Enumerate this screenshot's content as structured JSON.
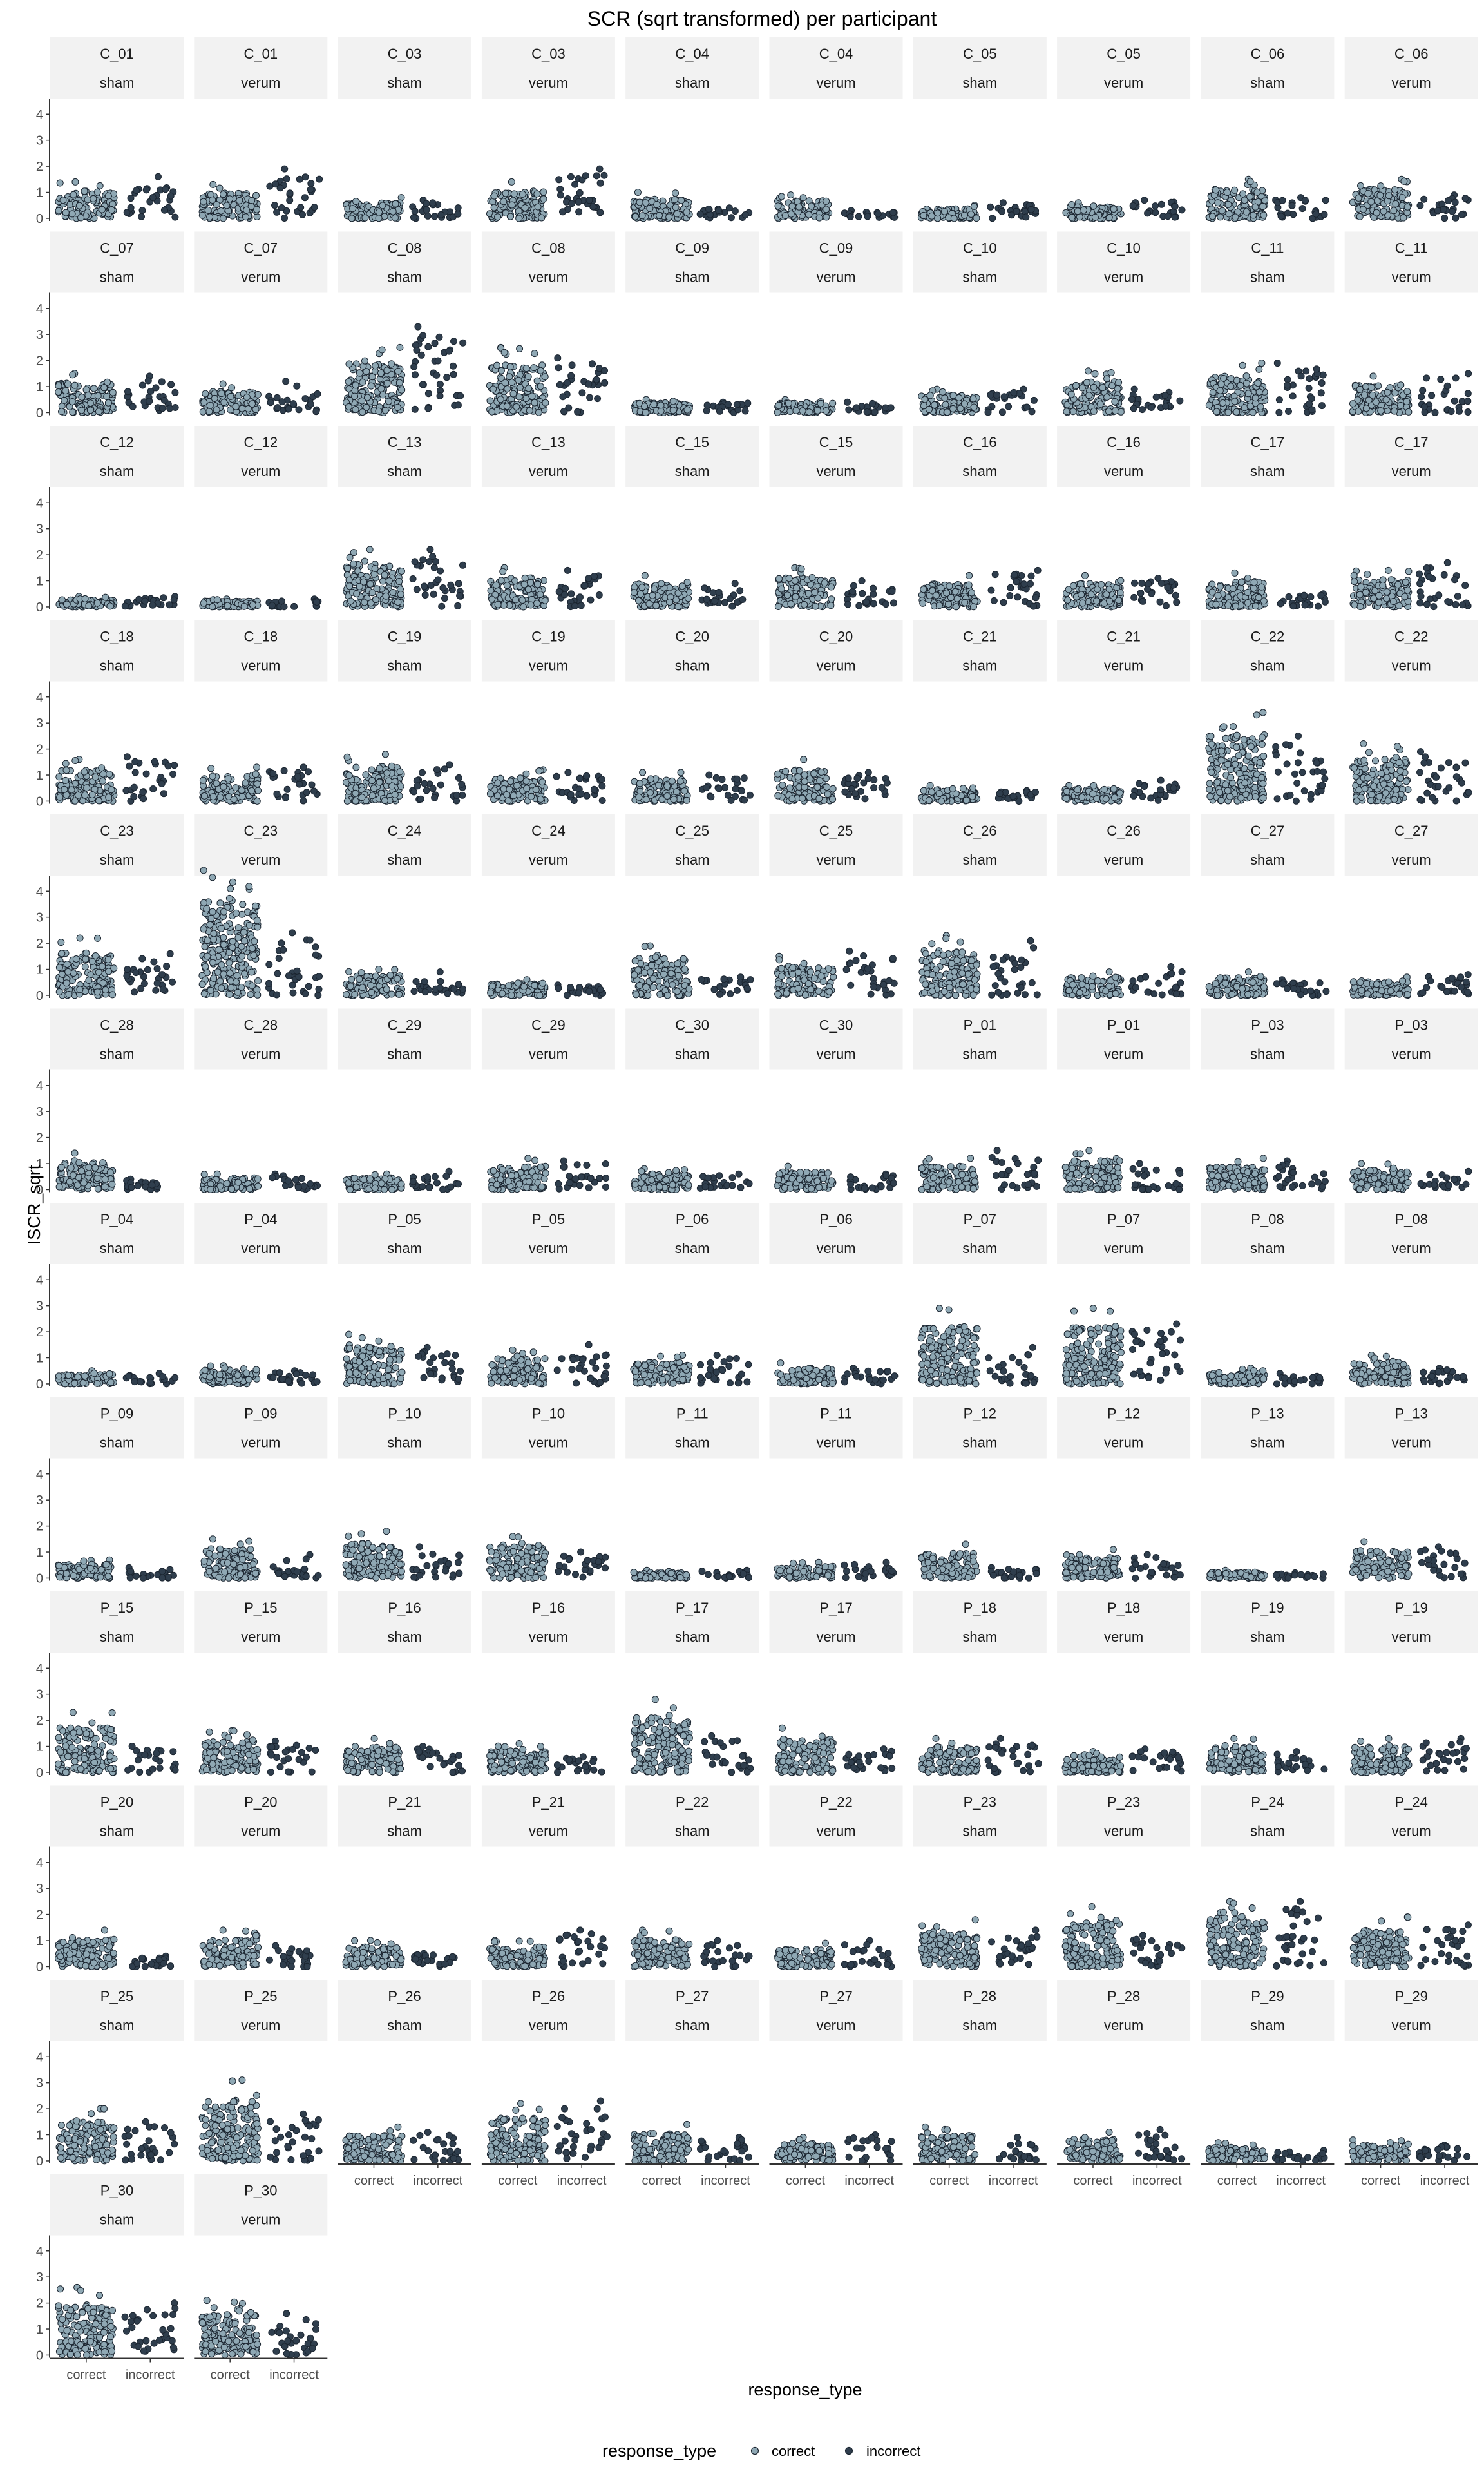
{
  "chart_data": {
    "type": "scatter",
    "title": "SCR (sqrt transformed) per participant",
    "xlabel": "response_type",
    "ylabel": "ISCR_sqrt",
    "categories": [
      "correct",
      "incorrect"
    ],
    "y_ticks": [
      0,
      1,
      2,
      3,
      4
    ],
    "ylim": [
      -0.1,
      4.6
    ],
    "grid": false,
    "legend": {
      "title": "response_type",
      "position": "bottom",
      "entries": [
        {
          "name": "correct",
          "color": "#8fa8b4"
        },
        {
          "name": "incorrect",
          "color": "#2f3e4d"
        }
      ]
    },
    "colors": {
      "correct": "#8fa8b4",
      "incorrect": "#2f3e4d",
      "stroke": "#1b2530"
    },
    "panels": [
      {
        "participant": "C_01",
        "condition": "sham",
        "correct_max": 1.4,
        "incorrect_max": 1.6
      },
      {
        "participant": "C_01",
        "condition": "verum",
        "correct_max": 1.3,
        "incorrect_max": 1.9
      },
      {
        "participant": "C_03",
        "condition": "sham",
        "correct_max": 0.8,
        "incorrect_max": 0.7
      },
      {
        "participant": "C_03",
        "condition": "verum",
        "correct_max": 1.4,
        "incorrect_max": 1.9
      },
      {
        "participant": "C_04",
        "condition": "sham",
        "correct_max": 1.0,
        "incorrect_max": 0.4
      },
      {
        "participant": "C_04",
        "condition": "verum",
        "correct_max": 0.9,
        "incorrect_max": 0.3
      },
      {
        "participant": "C_05",
        "condition": "sham",
        "correct_max": 0.5,
        "incorrect_max": 0.6
      },
      {
        "participant": "C_05",
        "condition": "verum",
        "correct_max": 0.6,
        "incorrect_max": 0.7
      },
      {
        "participant": "C_06",
        "condition": "sham",
        "correct_max": 1.5,
        "incorrect_max": 0.8
      },
      {
        "participant": "C_06",
        "condition": "verum",
        "correct_max": 1.5,
        "incorrect_max": 0.9
      },
      {
        "participant": "C_07",
        "condition": "sham",
        "correct_max": 1.5,
        "incorrect_max": 1.4
      },
      {
        "participant": "C_07",
        "condition": "verum",
        "correct_max": 1.1,
        "incorrect_max": 1.2
      },
      {
        "participant": "C_08",
        "condition": "sham",
        "correct_max": 2.5,
        "incorrect_max": 3.3
      },
      {
        "participant": "C_08",
        "condition": "verum",
        "correct_max": 2.5,
        "incorrect_max": 2.1
      },
      {
        "participant": "C_09",
        "condition": "sham",
        "correct_max": 0.5,
        "incorrect_max": 0.4
      },
      {
        "participant": "C_09",
        "condition": "verum",
        "correct_max": 0.5,
        "incorrect_max": 0.4
      },
      {
        "participant": "C_10",
        "condition": "sham",
        "correct_max": 0.9,
        "incorrect_max": 0.9
      },
      {
        "participant": "C_10",
        "condition": "verum",
        "correct_max": 1.6,
        "incorrect_max": 0.9
      },
      {
        "participant": "C_11",
        "condition": "sham",
        "correct_max": 1.9,
        "incorrect_max": 1.9
      },
      {
        "participant": "C_11",
        "condition": "verum",
        "correct_max": 1.4,
        "incorrect_max": 1.5
      },
      {
        "participant": "C_12",
        "condition": "sham",
        "correct_max": 0.4,
        "incorrect_max": 0.4
      },
      {
        "participant": "C_12",
        "condition": "verum",
        "correct_max": 0.3,
        "incorrect_max": 0.3
      },
      {
        "participant": "C_13",
        "condition": "sham",
        "correct_max": 2.2,
        "incorrect_max": 2.2
      },
      {
        "participant": "C_13",
        "condition": "verum",
        "correct_max": 1.5,
        "incorrect_max": 1.4
      },
      {
        "participant": "C_15",
        "condition": "sham",
        "correct_max": 1.2,
        "incorrect_max": 0.9
      },
      {
        "participant": "C_15",
        "condition": "verum",
        "correct_max": 1.5,
        "incorrect_max": 1.0
      },
      {
        "participant": "C_16",
        "condition": "sham",
        "correct_max": 1.2,
        "incorrect_max": 1.4
      },
      {
        "participant": "C_16",
        "condition": "verum",
        "correct_max": 1.2,
        "incorrect_max": 1.1
      },
      {
        "participant": "C_17",
        "condition": "sham",
        "correct_max": 1.3,
        "incorrect_max": 0.5
      },
      {
        "participant": "C_17",
        "condition": "verum",
        "correct_max": 1.4,
        "incorrect_max": 1.7
      },
      {
        "participant": "C_18",
        "condition": "sham",
        "correct_max": 1.6,
        "incorrect_max": 1.7
      },
      {
        "participant": "C_18",
        "condition": "verum",
        "correct_max": 1.3,
        "incorrect_max": 1.3
      },
      {
        "participant": "C_19",
        "condition": "sham",
        "correct_max": 1.8,
        "incorrect_max": 1.4
      },
      {
        "participant": "C_19",
        "condition": "verum",
        "correct_max": 1.2,
        "incorrect_max": 1.1
      },
      {
        "participant": "C_20",
        "condition": "sham",
        "correct_max": 1.1,
        "incorrect_max": 1.0
      },
      {
        "participant": "C_20",
        "condition": "verum",
        "correct_max": 1.6,
        "incorrect_max": 1.1
      },
      {
        "participant": "C_21",
        "condition": "sham",
        "correct_max": 0.6,
        "incorrect_max": 0.4
      },
      {
        "participant": "C_21",
        "condition": "verum",
        "correct_max": 0.6,
        "incorrect_max": 0.8
      },
      {
        "participant": "C_22",
        "condition": "sham",
        "correct_max": 3.4,
        "incorrect_max": 2.5
      },
      {
        "participant": "C_22",
        "condition": "verum",
        "correct_max": 2.2,
        "incorrect_max": 1.9
      },
      {
        "participant": "C_23",
        "condition": "sham",
        "correct_max": 2.2,
        "incorrect_max": 1.6
      },
      {
        "participant": "C_23",
        "condition": "verum",
        "correct_max": 4.8,
        "incorrect_max": 2.4
      },
      {
        "participant": "C_24",
        "condition": "sham",
        "correct_max": 1.0,
        "incorrect_max": 0.9
      },
      {
        "participant": "C_24",
        "condition": "verum",
        "correct_max": 0.6,
        "incorrect_max": 0.4
      },
      {
        "participant": "C_25",
        "condition": "sham",
        "correct_max": 1.9,
        "incorrect_max": 0.7
      },
      {
        "participant": "C_25",
        "condition": "verum",
        "correct_max": 1.5,
        "incorrect_max": 1.7
      },
      {
        "participant": "C_26",
        "condition": "sham",
        "correct_max": 2.3,
        "incorrect_max": 2.1
      },
      {
        "participant": "C_26",
        "condition": "verum",
        "correct_max": 0.9,
        "incorrect_max": 1.1
      },
      {
        "participant": "C_27",
        "condition": "sham",
        "correct_max": 0.9,
        "incorrect_max": 0.6
      },
      {
        "participant": "C_27",
        "condition": "verum",
        "correct_max": 0.7,
        "incorrect_max": 0.8
      },
      {
        "participant": "C_28",
        "condition": "sham",
        "correct_max": 1.4,
        "incorrect_max": 0.4
      },
      {
        "participant": "C_28",
        "condition": "verum",
        "correct_max": 0.6,
        "incorrect_max": 0.6
      },
      {
        "participant": "C_29",
        "condition": "sham",
        "correct_max": 0.6,
        "incorrect_max": 0.7
      },
      {
        "participant": "C_29",
        "condition": "verum",
        "correct_max": 1.2,
        "incorrect_max": 1.1
      },
      {
        "participant": "C_30",
        "condition": "sham",
        "correct_max": 0.8,
        "incorrect_max": 0.6
      },
      {
        "participant": "C_30",
        "condition": "verum",
        "correct_max": 0.9,
        "incorrect_max": 0.6
      },
      {
        "participant": "P_01",
        "condition": "sham",
        "correct_max": 1.2,
        "incorrect_max": 1.5
      },
      {
        "participant": "P_01",
        "condition": "verum",
        "correct_max": 1.5,
        "incorrect_max": 1.0
      },
      {
        "participant": "P_03",
        "condition": "sham",
        "correct_max": 1.2,
        "incorrect_max": 1.1
      },
      {
        "participant": "P_03",
        "condition": "verum",
        "correct_max": 1.0,
        "incorrect_max": 0.7
      },
      {
        "participant": "P_04",
        "condition": "sham",
        "correct_max": 0.5,
        "incorrect_max": 0.4
      },
      {
        "participant": "P_04",
        "condition": "verum",
        "correct_max": 0.7,
        "incorrect_max": 0.5
      },
      {
        "participant": "P_05",
        "condition": "sham",
        "correct_max": 1.9,
        "incorrect_max": 1.4
      },
      {
        "participant": "P_05",
        "condition": "verum",
        "correct_max": 1.3,
        "incorrect_max": 1.5
      },
      {
        "participant": "P_06",
        "condition": "sham",
        "correct_max": 1.1,
        "incorrect_max": 1.1
      },
      {
        "participant": "P_06",
        "condition": "verum",
        "correct_max": 0.8,
        "incorrect_max": 0.6
      },
      {
        "participant": "P_07",
        "condition": "sham",
        "correct_max": 2.9,
        "incorrect_max": 1.4
      },
      {
        "participant": "P_07",
        "condition": "verum",
        "correct_max": 2.9,
        "incorrect_max": 2.3
      },
      {
        "participant": "P_08",
        "condition": "sham",
        "correct_max": 0.6,
        "incorrect_max": 0.4
      },
      {
        "participant": "P_08",
        "condition": "verum",
        "correct_max": 1.1,
        "incorrect_max": 0.6
      },
      {
        "participant": "P_09",
        "condition": "sham",
        "correct_max": 0.7,
        "incorrect_max": 0.4
      },
      {
        "participant": "P_09",
        "condition": "verum",
        "correct_max": 1.5,
        "incorrect_max": 0.9
      },
      {
        "participant": "P_10",
        "condition": "sham",
        "correct_max": 1.8,
        "incorrect_max": 1.2
      },
      {
        "participant": "P_10",
        "condition": "verum",
        "correct_max": 1.6,
        "incorrect_max": 1.0
      },
      {
        "participant": "P_11",
        "condition": "sham",
        "correct_max": 0.3,
        "incorrect_max": 0.3
      },
      {
        "participant": "P_11",
        "condition": "verum",
        "correct_max": 0.6,
        "incorrect_max": 0.6
      },
      {
        "participant": "P_12",
        "condition": "sham",
        "correct_max": 1.3,
        "incorrect_max": 0.4
      },
      {
        "participant": "P_12",
        "condition": "verum",
        "correct_max": 1.1,
        "incorrect_max": 0.9
      },
      {
        "participant": "P_13",
        "condition": "sham",
        "correct_max": 0.3,
        "incorrect_max": 0.2
      },
      {
        "participant": "P_13",
        "condition": "verum",
        "correct_max": 1.4,
        "incorrect_max": 1.2
      },
      {
        "participant": "P_15",
        "condition": "sham",
        "correct_max": 2.3,
        "incorrect_max": 1.0
      },
      {
        "participant": "P_15",
        "condition": "verum",
        "correct_max": 1.6,
        "incorrect_max": 1.2
      },
      {
        "participant": "P_16",
        "condition": "sham",
        "correct_max": 1.3,
        "incorrect_max": 1.0
      },
      {
        "participant": "P_16",
        "condition": "verum",
        "correct_max": 1.1,
        "incorrect_max": 0.6
      },
      {
        "participant": "P_17",
        "condition": "sham",
        "correct_max": 2.8,
        "incorrect_max": 1.4
      },
      {
        "participant": "P_17",
        "condition": "verum",
        "correct_max": 1.7,
        "incorrect_max": 0.9
      },
      {
        "participant": "P_18",
        "condition": "sham",
        "correct_max": 1.3,
        "incorrect_max": 1.3
      },
      {
        "participant": "P_18",
        "condition": "verum",
        "correct_max": 0.8,
        "incorrect_max": 0.9
      },
      {
        "participant": "P_19",
        "condition": "sham",
        "correct_max": 1.3,
        "incorrect_max": 0.8
      },
      {
        "participant": "P_19",
        "condition": "verum",
        "correct_max": 1.3,
        "incorrect_max": 1.3
      },
      {
        "participant": "P_20",
        "condition": "sham",
        "correct_max": 1.4,
        "incorrect_max": 0.4
      },
      {
        "participant": "P_20",
        "condition": "verum",
        "correct_max": 1.4,
        "incorrect_max": 0.8
      },
      {
        "participant": "P_21",
        "condition": "sham",
        "correct_max": 1.0,
        "incorrect_max": 0.5
      },
      {
        "participant": "P_21",
        "condition": "verum",
        "correct_max": 1.0,
        "incorrect_max": 1.4
      },
      {
        "participant": "P_22",
        "condition": "sham",
        "correct_max": 1.4,
        "incorrect_max": 1.0
      },
      {
        "participant": "P_22",
        "condition": "verum",
        "correct_max": 0.9,
        "incorrect_max": 1.0
      },
      {
        "participant": "P_23",
        "condition": "sham",
        "correct_max": 1.8,
        "incorrect_max": 1.4
      },
      {
        "participant": "P_23",
        "condition": "verum",
        "correct_max": 2.3,
        "incorrect_max": 1.2
      },
      {
        "participant": "P_24",
        "condition": "sham",
        "correct_max": 2.5,
        "incorrect_max": 2.5
      },
      {
        "participant": "P_24",
        "condition": "verum",
        "correct_max": 1.9,
        "incorrect_max": 1.6
      },
      {
        "participant": "P_25",
        "condition": "sham",
        "correct_max": 2.0,
        "incorrect_max": 1.5
      },
      {
        "participant": "P_25",
        "condition": "verum",
        "correct_max": 3.1,
        "incorrect_max": 1.8
      },
      {
        "participant": "P_26",
        "condition": "sham",
        "correct_max": 1.3,
        "incorrect_max": 1.1
      },
      {
        "participant": "P_26",
        "condition": "verum",
        "correct_max": 2.2,
        "incorrect_max": 2.3
      },
      {
        "participant": "P_27",
        "condition": "sham",
        "correct_max": 1.4,
        "incorrect_max": 0.9
      },
      {
        "participant": "P_27",
        "condition": "verum",
        "correct_max": 0.9,
        "incorrect_max": 1.0
      },
      {
        "participant": "P_28",
        "condition": "sham",
        "correct_max": 1.3,
        "incorrect_max": 0.9
      },
      {
        "participant": "P_28",
        "condition": "verum",
        "correct_max": 1.1,
        "incorrect_max": 1.2
      },
      {
        "participant": "P_29",
        "condition": "sham",
        "correct_max": 0.7,
        "incorrect_max": 0.4
      },
      {
        "participant": "P_29",
        "condition": "verum",
        "correct_max": 0.8,
        "incorrect_max": 0.6
      },
      {
        "participant": "P_30",
        "condition": "sham",
        "correct_max": 2.6,
        "incorrect_max": 2.0
      },
      {
        "participant": "P_30",
        "condition": "verum",
        "correct_max": 2.1,
        "incorrect_max": 1.6
      }
    ]
  }
}
